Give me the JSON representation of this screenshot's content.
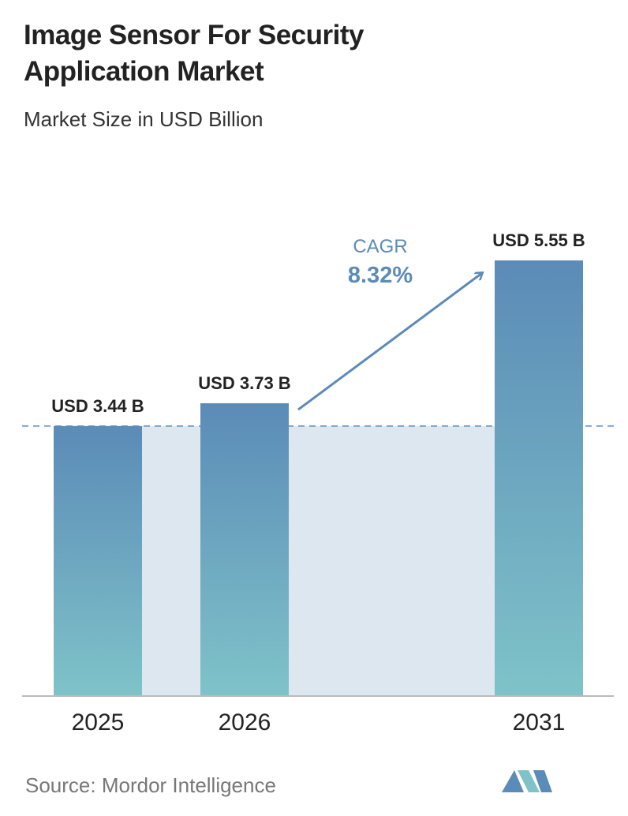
{
  "chart_data": {
    "type": "bar",
    "title": "Image Sensor For Security Application Market",
    "subtitle": "Market Size in USD Billion",
    "categories": [
      "2025",
      "2026",
      "2031"
    ],
    "values": [
      3.44,
      3.73,
      5.55
    ],
    "value_labels": [
      "USD 3.44 B",
      "USD 3.73 B",
      "USD 5.55 B"
    ],
    "annotation": {
      "label": "CAGR",
      "value": "8.32%"
    },
    "source": "Source: Mordor Intelligence"
  }
}
